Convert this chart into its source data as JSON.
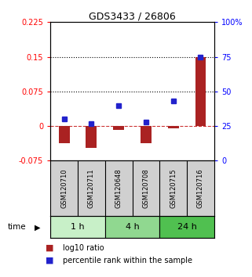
{
  "title": "GDS3433 / 26806",
  "samples": [
    "GSM120710",
    "GSM120711",
    "GSM120648",
    "GSM120708",
    "GSM120715",
    "GSM120716"
  ],
  "log10_ratio": [
    -0.038,
    -0.048,
    -0.008,
    -0.038,
    -0.005,
    0.15
  ],
  "percentile_rank": [
    30,
    27,
    40,
    28,
    43,
    75
  ],
  "time_groups": [
    {
      "label": "1 h",
      "samples": [
        0,
        1
      ],
      "color": "#c8f0c8"
    },
    {
      "label": "4 h",
      "samples": [
        2,
        3
      ],
      "color": "#90d890"
    },
    {
      "label": "24 h",
      "samples": [
        4,
        5
      ],
      "color": "#50c050"
    }
  ],
  "ylim_left": [
    -0.075,
    0.225
  ],
  "ylim_right": [
    0,
    100
  ],
  "yticks_left": [
    -0.075,
    0,
    0.075,
    0.15,
    0.225
  ],
  "ytick_labels_left": [
    "-0.075",
    "0",
    "0.075",
    "0.15",
    "0.225"
  ],
  "yticks_right": [
    0,
    25,
    50,
    75,
    100
  ],
  "ytick_labels_right": [
    "0",
    "25",
    "50",
    "75",
    "100%"
  ],
  "hlines": [
    0.075,
    0.15
  ],
  "bar_color": "#aa2222",
  "square_color": "#2222cc",
  "bar_width": 0.4,
  "zero_line_color": "#cc3333",
  "bg_color": "#ffffff",
  "plot_bg": "#ffffff",
  "legend_items": [
    "log10 ratio",
    "percentile rank within the sample"
  ],
  "time_label": "time",
  "sample_panel_color": "#d0d0d0"
}
